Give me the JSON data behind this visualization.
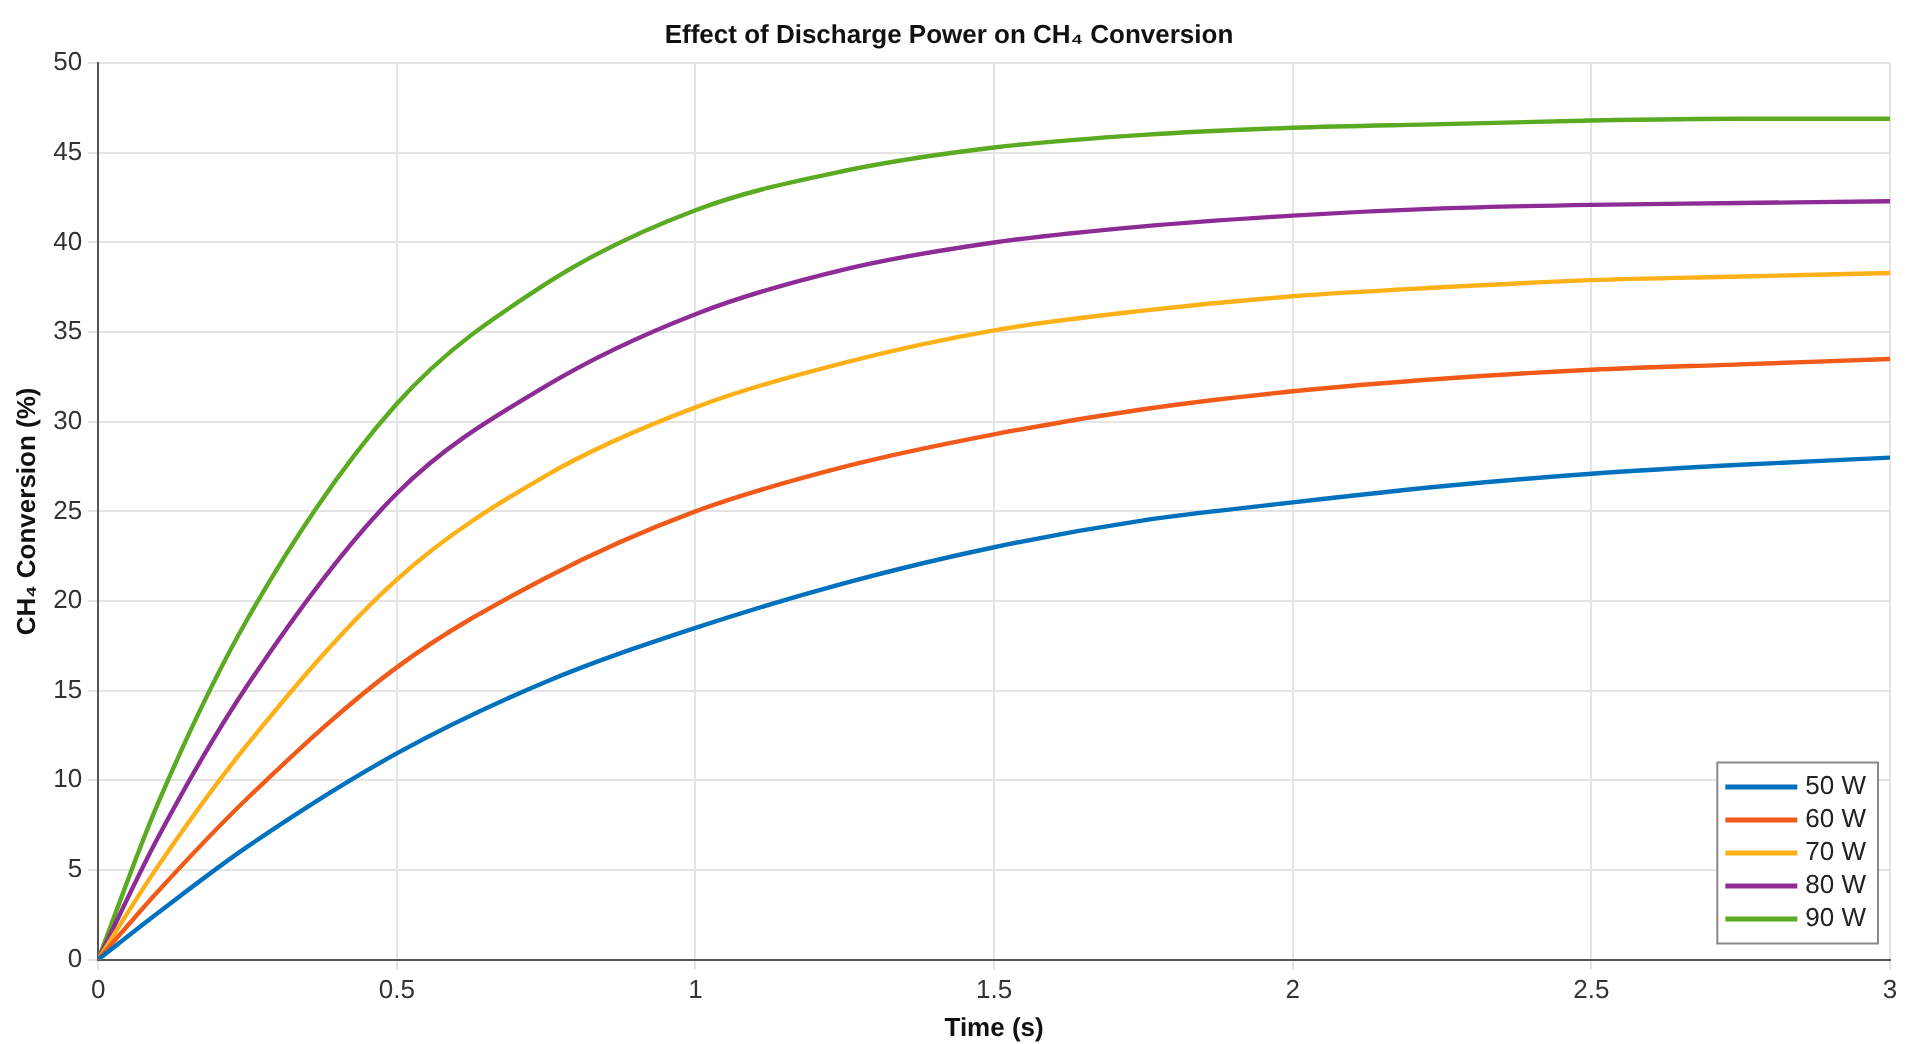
{
  "chart_data": {
    "type": "line",
    "title": "Effect of Discharge Power on CH₄ Conversion",
    "xlabel": "Time (s)",
    "ylabel": "CH₄ Conversion (%)",
    "x": [
      0,
      0.1,
      0.25,
      0.5,
      0.75,
      1,
      1.25,
      1.5,
      1.75,
      2,
      2.25,
      2.5,
      2.75,
      3
    ],
    "series": [
      {
        "name": "50 W",
        "color": "#0072bd",
        "values": [
          0,
          2.6,
          6.3,
          11.5,
          15.5,
          18.5,
          21,
          23,
          24.5,
          25.5,
          26.4,
          27.1,
          27.6,
          28
        ]
      },
      {
        "name": "60 W",
        "color": "#f25a1a",
        "values": [
          0,
          3.8,
          9,
          16.3,
          21.3,
          25,
          27.5,
          29.3,
          30.7,
          31.7,
          32.4,
          32.9,
          33.2,
          33.5
        ]
      },
      {
        "name": "70 W",
        "color": "#fbb117",
        "values": [
          0,
          5.2,
          12,
          21.2,
          27,
          30.8,
          33.3,
          35.1,
          36.2,
          37,
          37.5,
          37.9,
          38.1,
          38.3
        ]
      },
      {
        "name": "80 W",
        "color": "#8e2c95",
        "values": [
          0,
          6.8,
          15.3,
          26,
          32,
          36,
          38.5,
          40,
          40.9,
          41.5,
          41.9,
          42.1,
          42.2,
          42.3
        ]
      },
      {
        "name": "90 W",
        "color": "#5aaa22",
        "values": [
          0,
          8.7,
          19,
          31,
          37.7,
          41.8,
          44,
          45.3,
          46,
          46.4,
          46.6,
          46.8,
          46.9,
          46.9
        ]
      }
    ],
    "xlim": [
      0,
      3
    ],
    "xticks": [
      0,
      0.5,
      1,
      1.5,
      2,
      2.5,
      3
    ],
    "ylim": [
      0,
      50
    ],
    "yticks": [
      0,
      5,
      10,
      15,
      20,
      25,
      30,
      35,
      40,
      45,
      50
    ],
    "grid": true,
    "legend": "bottom right",
    "marker": "none",
    "line_style": "solid"
  }
}
